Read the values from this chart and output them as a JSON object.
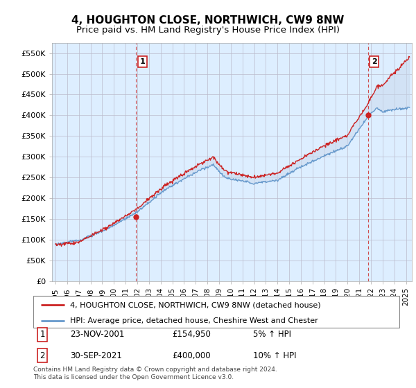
{
  "title": "4, HOUGHTON CLOSE, NORTHWICH, CW9 8NW",
  "subtitle": "Price paid vs. HM Land Registry's House Price Index (HPI)",
  "ylabel_ticks": [
    "£0",
    "£50K",
    "£100K",
    "£150K",
    "£200K",
    "£250K",
    "£300K",
    "£350K",
    "£400K",
    "£450K",
    "£500K",
    "£550K"
  ],
  "ytick_values": [
    0,
    50000,
    100000,
    150000,
    200000,
    250000,
    300000,
    350000,
    400000,
    450000,
    500000,
    550000
  ],
  "ylim": [
    0,
    575000
  ],
  "xmin": 1994.7,
  "xmax": 2025.5,
  "transaction1_x": 2001.9,
  "transaction1_y": 154950,
  "transaction1_label": "1",
  "transaction1_date": "23-NOV-2001",
  "transaction1_price": "£154,950",
  "transaction1_hpi": "5% ↑ HPI",
  "transaction2_x": 2021.75,
  "transaction2_y": 400000,
  "transaction2_label": "2",
  "transaction2_date": "30-SEP-2021",
  "transaction2_price": "£400,000",
  "transaction2_hpi": "10% ↑ HPI",
  "line1_color": "#cc2222",
  "line2_color": "#6699cc",
  "fill_color": "#d0e4f7",
  "vline_color": "#cc2222",
  "background_color": "#ffffff",
  "chart_bg_color": "#ddeeff",
  "legend_label1": "4, HOUGHTON CLOSE, NORTHWICH, CW9 8NW (detached house)",
  "legend_label2": "HPI: Average price, detached house, Cheshire West and Chester",
  "footer": "Contains HM Land Registry data © Crown copyright and database right 2024.\nThis data is licensed under the Open Government Licence v3.0.",
  "title_fontsize": 11,
  "subtitle_fontsize": 9.5
}
